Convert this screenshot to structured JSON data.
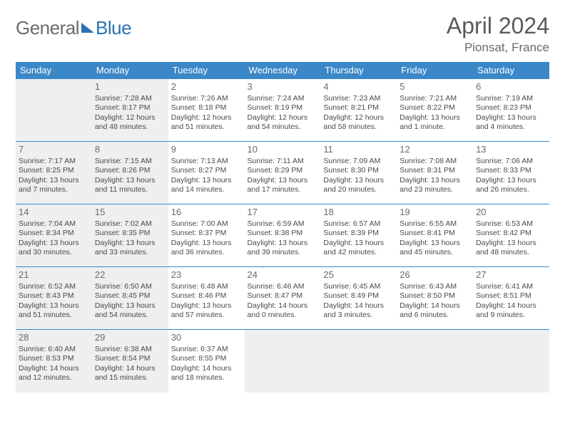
{
  "logo": {
    "part1": "General",
    "part2": "Blue"
  },
  "title": "April 2024",
  "location": "Pionsat, France",
  "colors": {
    "header_bg": "#3b87c8",
    "header_text": "#ffffff",
    "border": "#3b87c8",
    "shaded_bg": "#efefef",
    "page_bg": "#ffffff",
    "text": "#4a4a4a",
    "title_text": "#5a5a5a",
    "logo_gray": "#6a6a6a",
    "logo_blue": "#2a72b5"
  },
  "weekdays": [
    "Sunday",
    "Monday",
    "Tuesday",
    "Wednesday",
    "Thursday",
    "Friday",
    "Saturday"
  ],
  "weeks": [
    [
      {
        "empty": true,
        "shaded": true
      },
      {
        "day": "1",
        "shaded": true,
        "sunrise": "Sunrise: 7:28 AM",
        "sunset": "Sunset: 8:17 PM",
        "daylight": "Daylight: 12 hours and 48 minutes."
      },
      {
        "day": "2",
        "sunrise": "Sunrise: 7:26 AM",
        "sunset": "Sunset: 8:18 PM",
        "daylight": "Daylight: 12 hours and 51 minutes."
      },
      {
        "day": "3",
        "sunrise": "Sunrise: 7:24 AM",
        "sunset": "Sunset: 8:19 PM",
        "daylight": "Daylight: 12 hours and 54 minutes."
      },
      {
        "day": "4",
        "sunrise": "Sunrise: 7:23 AM",
        "sunset": "Sunset: 8:21 PM",
        "daylight": "Daylight: 12 hours and 58 minutes."
      },
      {
        "day": "5",
        "sunrise": "Sunrise: 7:21 AM",
        "sunset": "Sunset: 8:22 PM",
        "daylight": "Daylight: 13 hours and 1 minute."
      },
      {
        "day": "6",
        "sunrise": "Sunrise: 7:19 AM",
        "sunset": "Sunset: 8:23 PM",
        "daylight": "Daylight: 13 hours and 4 minutes."
      }
    ],
    [
      {
        "day": "7",
        "shaded": true,
        "sunrise": "Sunrise: 7:17 AM",
        "sunset": "Sunset: 8:25 PM",
        "daylight": "Daylight: 13 hours and 7 minutes."
      },
      {
        "day": "8",
        "shaded": true,
        "sunrise": "Sunrise: 7:15 AM",
        "sunset": "Sunset: 8:26 PM",
        "daylight": "Daylight: 13 hours and 11 minutes."
      },
      {
        "day": "9",
        "sunrise": "Sunrise: 7:13 AM",
        "sunset": "Sunset: 8:27 PM",
        "daylight": "Daylight: 13 hours and 14 minutes."
      },
      {
        "day": "10",
        "sunrise": "Sunrise: 7:11 AM",
        "sunset": "Sunset: 8:29 PM",
        "daylight": "Daylight: 13 hours and 17 minutes."
      },
      {
        "day": "11",
        "sunrise": "Sunrise: 7:09 AM",
        "sunset": "Sunset: 8:30 PM",
        "daylight": "Daylight: 13 hours and 20 minutes."
      },
      {
        "day": "12",
        "sunrise": "Sunrise: 7:08 AM",
        "sunset": "Sunset: 8:31 PM",
        "daylight": "Daylight: 13 hours and 23 minutes."
      },
      {
        "day": "13",
        "sunrise": "Sunrise: 7:06 AM",
        "sunset": "Sunset: 8:33 PM",
        "daylight": "Daylight: 13 hours and 26 minutes."
      }
    ],
    [
      {
        "day": "14",
        "shaded": true,
        "sunrise": "Sunrise: 7:04 AM",
        "sunset": "Sunset: 8:34 PM",
        "daylight": "Daylight: 13 hours and 30 minutes."
      },
      {
        "day": "15",
        "shaded": true,
        "sunrise": "Sunrise: 7:02 AM",
        "sunset": "Sunset: 8:35 PM",
        "daylight": "Daylight: 13 hours and 33 minutes."
      },
      {
        "day": "16",
        "sunrise": "Sunrise: 7:00 AM",
        "sunset": "Sunset: 8:37 PM",
        "daylight": "Daylight: 13 hours and 36 minutes."
      },
      {
        "day": "17",
        "sunrise": "Sunrise: 6:59 AM",
        "sunset": "Sunset: 8:38 PM",
        "daylight": "Daylight: 13 hours and 39 minutes."
      },
      {
        "day": "18",
        "sunrise": "Sunrise: 6:57 AM",
        "sunset": "Sunset: 8:39 PM",
        "daylight": "Daylight: 13 hours and 42 minutes."
      },
      {
        "day": "19",
        "sunrise": "Sunrise: 6:55 AM",
        "sunset": "Sunset: 8:41 PM",
        "daylight": "Daylight: 13 hours and 45 minutes."
      },
      {
        "day": "20",
        "sunrise": "Sunrise: 6:53 AM",
        "sunset": "Sunset: 8:42 PM",
        "daylight": "Daylight: 13 hours and 48 minutes."
      }
    ],
    [
      {
        "day": "21",
        "shaded": true,
        "sunrise": "Sunrise: 6:52 AM",
        "sunset": "Sunset: 8:43 PM",
        "daylight": "Daylight: 13 hours and 51 minutes."
      },
      {
        "day": "22",
        "shaded": true,
        "sunrise": "Sunrise: 6:50 AM",
        "sunset": "Sunset: 8:45 PM",
        "daylight": "Daylight: 13 hours and 54 minutes."
      },
      {
        "day": "23",
        "sunrise": "Sunrise: 6:48 AM",
        "sunset": "Sunset: 8:46 PM",
        "daylight": "Daylight: 13 hours and 57 minutes."
      },
      {
        "day": "24",
        "sunrise": "Sunrise: 6:46 AM",
        "sunset": "Sunset: 8:47 PM",
        "daylight": "Daylight: 14 hours and 0 minutes."
      },
      {
        "day": "25",
        "sunrise": "Sunrise: 6:45 AM",
        "sunset": "Sunset: 8:49 PM",
        "daylight": "Daylight: 14 hours and 3 minutes."
      },
      {
        "day": "26",
        "sunrise": "Sunrise: 6:43 AM",
        "sunset": "Sunset: 8:50 PM",
        "daylight": "Daylight: 14 hours and 6 minutes."
      },
      {
        "day": "27",
        "sunrise": "Sunrise: 6:41 AM",
        "sunset": "Sunset: 8:51 PM",
        "daylight": "Daylight: 14 hours and 9 minutes."
      }
    ],
    [
      {
        "day": "28",
        "shaded": true,
        "sunrise": "Sunrise: 6:40 AM",
        "sunset": "Sunset: 8:53 PM",
        "daylight": "Daylight: 14 hours and 12 minutes."
      },
      {
        "day": "29",
        "shaded": true,
        "sunrise": "Sunrise: 6:38 AM",
        "sunset": "Sunset: 8:54 PM",
        "daylight": "Daylight: 14 hours and 15 minutes."
      },
      {
        "day": "30",
        "sunrise": "Sunrise: 6:37 AM",
        "sunset": "Sunset: 8:55 PM",
        "daylight": "Daylight: 14 hours and 18 minutes."
      },
      {
        "empty": true,
        "shaded": true
      },
      {
        "empty": true,
        "shaded": true
      },
      {
        "empty": true,
        "shaded": true
      },
      {
        "empty": true,
        "shaded": true
      }
    ]
  ]
}
